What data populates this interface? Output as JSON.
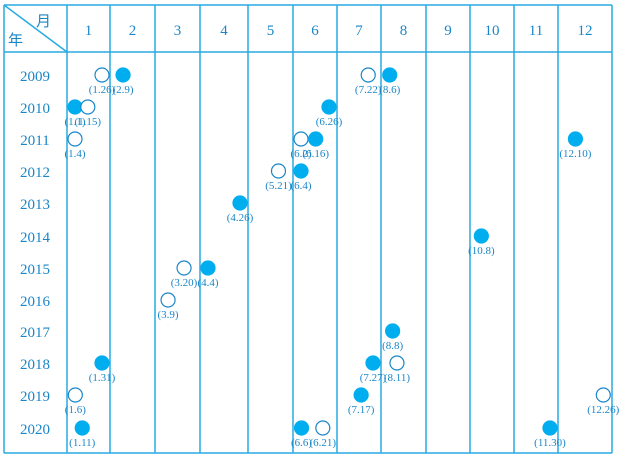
{
  "colors": {
    "accent": "#29abe2",
    "text": "#1a86c8",
    "filled_marker": "#00aeef",
    "background": "#ffffff"
  },
  "chart_data": {
    "type": "scatter",
    "corner": {
      "month_label": "月",
      "year_label": "年"
    },
    "months": [
      "1",
      "2",
      "3",
      "4",
      "5",
      "6",
      "7",
      "8",
      "9",
      "10",
      "11",
      "12"
    ],
    "years": [
      "2009",
      "2010",
      "2011",
      "2012",
      "2013",
      "2014",
      "2015",
      "2016",
      "2017",
      "2018",
      "2019",
      "2020"
    ],
    "grid": true,
    "points": [
      {
        "year": "2009",
        "date": "1.26",
        "month": 1,
        "day": 26,
        "filled": false,
        "label": "(1.26)"
      },
      {
        "year": "2009",
        "date": "2.9",
        "month": 2,
        "day": 9,
        "filled": true,
        "label": "(2.9)"
      },
      {
        "year": "2009",
        "date": "7.22",
        "month": 7,
        "day": 22,
        "filled": false,
        "label": "(7.22)"
      },
      {
        "year": "2009",
        "date": "8.6",
        "month": 8,
        "day": 6,
        "filled": true,
        "label": "(8.6)"
      },
      {
        "year": "2010",
        "date": "1.1",
        "month": 1,
        "day": 1,
        "filled": true,
        "label": "(1.1)"
      },
      {
        "year": "2010",
        "date": "1.15",
        "month": 1,
        "day": 15,
        "filled": false,
        "label": "(1.15)"
      },
      {
        "year": "2010",
        "date": "6.26",
        "month": 6,
        "day": 26,
        "filled": true,
        "label": "(6.26)"
      },
      {
        "year": "2011",
        "date": "1.4",
        "month": 1,
        "day": 4,
        "filled": false,
        "label": "(1.4)"
      },
      {
        "year": "2011",
        "date": "6.2",
        "month": 6,
        "day": 2,
        "filled": false,
        "label": "(6.2)"
      },
      {
        "year": "2011",
        "date": "6.16",
        "month": 6,
        "day": 16,
        "filled": true,
        "label": "(6.16)"
      },
      {
        "year": "2011",
        "date": "12.10",
        "month": 12,
        "day": 10,
        "filled": true,
        "label": "(12.10)"
      },
      {
        "year": "2012",
        "date": "5.21",
        "month": 5,
        "day": 21,
        "filled": false,
        "label": "(5.21)"
      },
      {
        "year": "2012",
        "date": "6.4",
        "month": 6,
        "day": 4,
        "filled": true,
        "label": "(6.4)"
      },
      {
        "year": "2013",
        "date": "4.26",
        "month": 4,
        "day": 26,
        "filled": true,
        "label": "(4.26)"
      },
      {
        "year": "2014",
        "date": "10.8",
        "month": 10,
        "day": 8,
        "filled": true,
        "label": "(10.8)"
      },
      {
        "year": "2015",
        "date": "3.20",
        "month": 3,
        "day": 20,
        "filled": false,
        "label": "(3.20)"
      },
      {
        "year": "2015",
        "date": "4.4",
        "month": 4,
        "day": 4,
        "filled": true,
        "label": "(4.4)"
      },
      {
        "year": "2016",
        "date": "3.9",
        "month": 3,
        "day": 9,
        "filled": false,
        "label": "(3.9)"
      },
      {
        "year": "2017",
        "date": "8.8",
        "month": 8,
        "day": 8,
        "filled": true,
        "label": "(8.8)"
      },
      {
        "year": "2018",
        "date": "1.31",
        "month": 1,
        "day": 31,
        "filled": true,
        "label": "(1.31)"
      },
      {
        "year": "2018",
        "date": "7.27",
        "month": 7,
        "day": 27,
        "filled": true,
        "label": "(7.27)"
      },
      {
        "year": "2018",
        "date": "8.11",
        "month": 8,
        "day": 11,
        "filled": false,
        "label": "(8.11)"
      },
      {
        "year": "2019",
        "date": "1.6",
        "month": 1,
        "day": 6,
        "filled": false,
        "label": "(1.6)"
      },
      {
        "year": "2019",
        "date": "7.17",
        "month": 7,
        "day": 17,
        "filled": true,
        "label": "(7.17)"
      },
      {
        "year": "2019",
        "date": "12.26",
        "month": 12,
        "day": 26,
        "filled": false,
        "label": "(12.26)"
      },
      {
        "year": "2020",
        "date": "1.11",
        "month": 1,
        "day": 11,
        "filled": true,
        "label": "(1.11)"
      },
      {
        "year": "2020",
        "date": "6.6",
        "month": 6,
        "day": 6,
        "filled": true,
        "label": "(6.6)"
      },
      {
        "year": "2020",
        "date": "6.21",
        "month": 6,
        "day": 21,
        "filled": false,
        "label": "(6.21)"
      },
      {
        "year": "2020",
        "date": "11.30",
        "month": 11,
        "day": 30,
        "filled": true,
        "label": "(11.30)"
      }
    ]
  }
}
